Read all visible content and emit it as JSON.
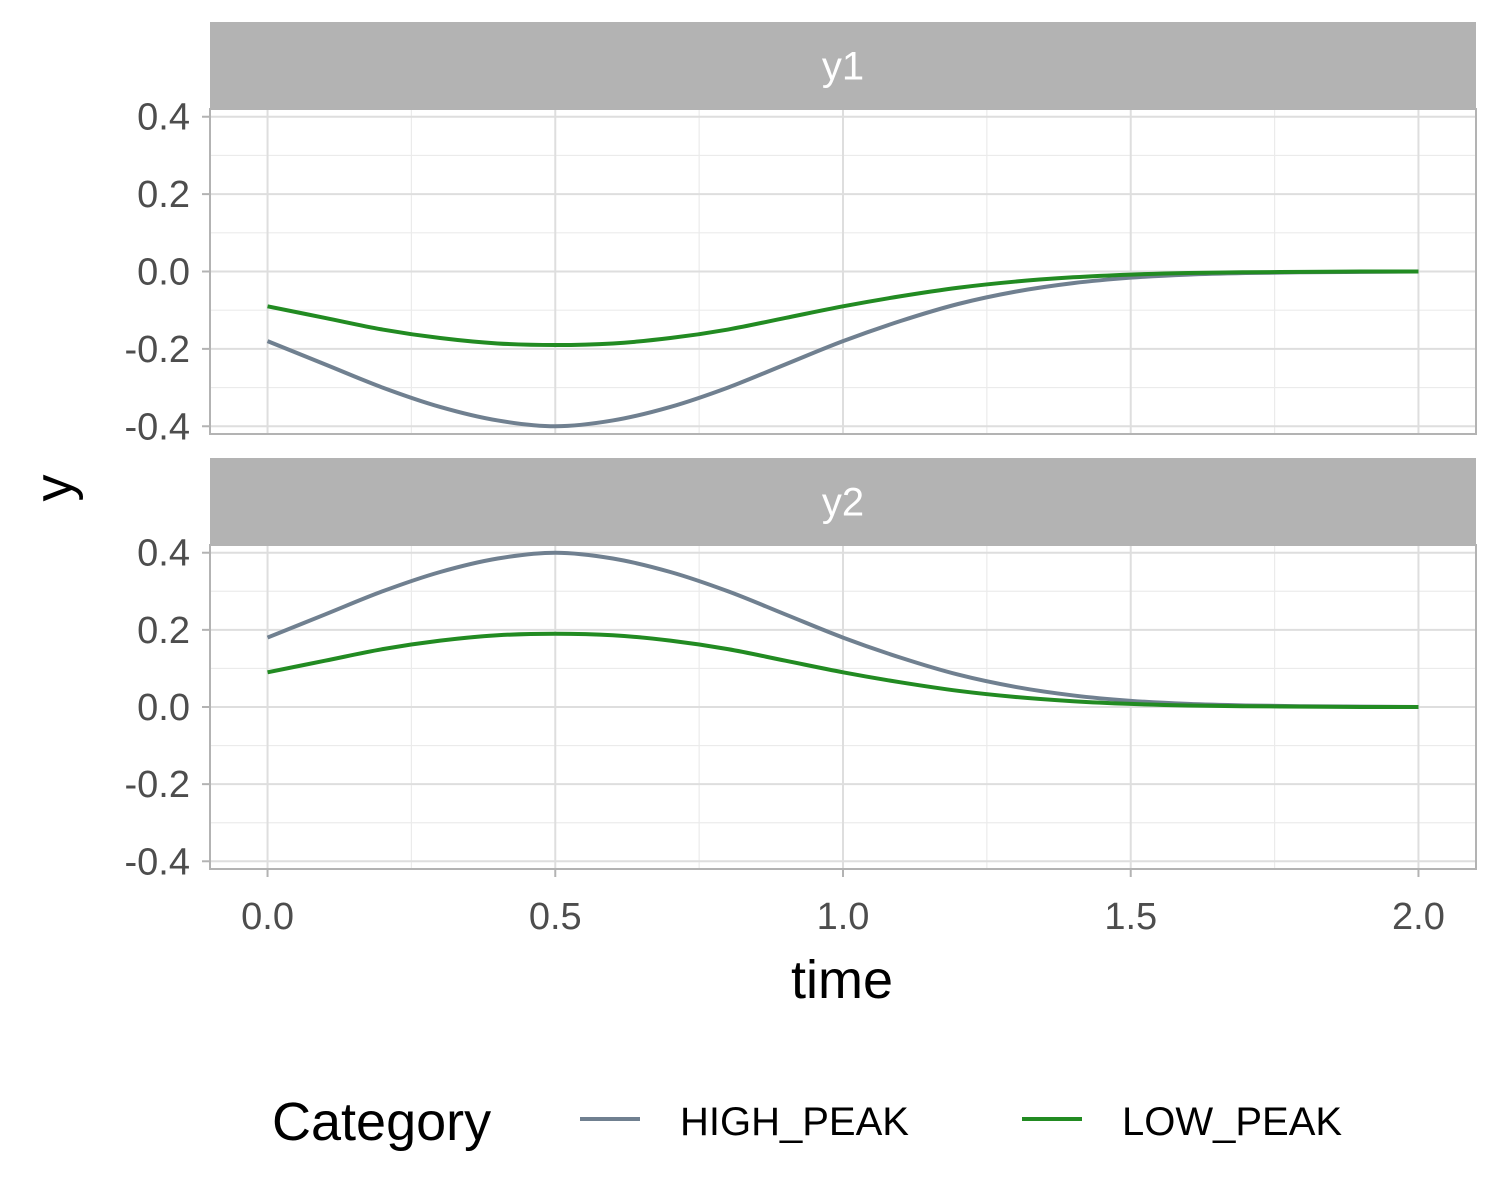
{
  "chart_data": {
    "type": "line",
    "facets": [
      "y1",
      "y2"
    ],
    "xlabel": "time",
    "ylabel": "y",
    "xlim": [
      -0.1,
      2.1
    ],
    "ylim": [
      -0.42,
      0.42
    ],
    "xticks": [
      0.0,
      0.5,
      1.0,
      1.5,
      2.0
    ],
    "xtick_labels": [
      "0.0",
      "0.5",
      "1.0",
      "1.5",
      "2.0"
    ],
    "yticks": [
      0.4,
      0.2,
      0.0,
      -0.2,
      -0.4
    ],
    "ytick_labels": [
      "0.4",
      "0.2",
      "0.0",
      "-0.2",
      "-0.4"
    ],
    "grid": true,
    "legend": {
      "title": "Category",
      "position": "bottom",
      "items": [
        {
          "label": "HIGH_PEAK",
          "color": "#708090"
        },
        {
          "label": "LOW_PEAK",
          "color": "#228B22"
        }
      ]
    },
    "x": [
      0.0,
      0.1,
      0.2,
      0.3,
      0.4,
      0.5,
      0.6,
      0.7,
      0.8,
      0.9,
      1.0,
      1.1,
      1.2,
      1.3,
      1.4,
      1.5,
      1.6,
      1.7,
      1.8,
      1.9,
      2.0
    ],
    "series": [
      {
        "facet": "y1",
        "name": "HIGH_PEAK",
        "color": "#708090",
        "values": [
          -0.18,
          -0.24,
          -0.3,
          -0.35,
          -0.385,
          -0.4,
          -0.385,
          -0.35,
          -0.3,
          -0.24,
          -0.18,
          -0.128,
          -0.084,
          -0.052,
          -0.03,
          -0.016,
          -0.008,
          -0.004,
          -0.002,
          -0.001,
          0.0
        ]
      },
      {
        "facet": "y1",
        "name": "LOW_PEAK",
        "color": "#228B22",
        "values": [
          -0.09,
          -0.12,
          -0.15,
          -0.172,
          -0.186,
          -0.19,
          -0.186,
          -0.172,
          -0.15,
          -0.12,
          -0.09,
          -0.064,
          -0.042,
          -0.026,
          -0.015,
          -0.008,
          -0.004,
          -0.002,
          -0.001,
          0.0,
          0.0
        ]
      },
      {
        "facet": "y2",
        "name": "HIGH_PEAK",
        "color": "#708090",
        "values": [
          0.18,
          0.24,
          0.3,
          0.35,
          0.385,
          0.4,
          0.385,
          0.35,
          0.3,
          0.24,
          0.18,
          0.128,
          0.084,
          0.052,
          0.03,
          0.016,
          0.008,
          0.004,
          0.002,
          0.001,
          0.0
        ]
      },
      {
        "facet": "y2",
        "name": "LOW_PEAK",
        "color": "#228B22",
        "values": [
          0.09,
          0.12,
          0.15,
          0.172,
          0.186,
          0.19,
          0.186,
          0.172,
          0.15,
          0.12,
          0.09,
          0.064,
          0.042,
          0.026,
          0.015,
          0.008,
          0.004,
          0.002,
          0.001,
          0.0,
          0.0
        ]
      }
    ]
  }
}
